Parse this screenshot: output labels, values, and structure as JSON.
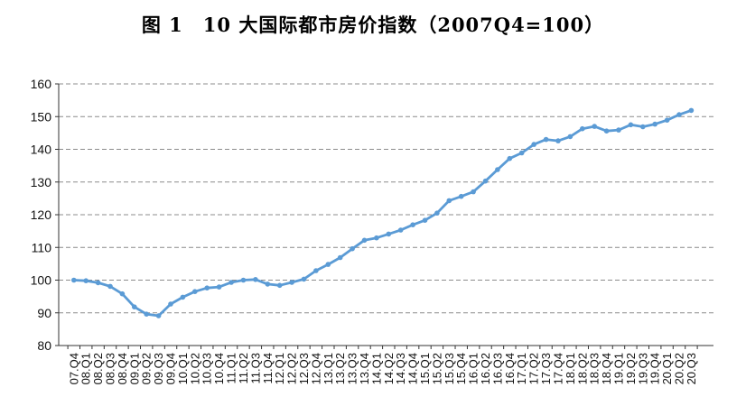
{
  "chart_data": {
    "type": "line",
    "title": "图 1　10 大国际都市房价指数（2007Q4=100）",
    "xlabel": "",
    "ylabel": "",
    "ylim": [
      80,
      160
    ],
    "y_ticks": [
      80,
      90,
      100,
      110,
      120,
      130,
      140,
      150,
      160
    ],
    "grid": "horizontal-dashed",
    "legend": "none",
    "line_color": "#5B9BD5",
    "marker": "circle",
    "categories": [
      "07.Q4",
      "08.Q1",
      "08.Q2",
      "08.Q3",
      "08.Q4",
      "09.Q1",
      "09.Q2",
      "09.Q3",
      "09.Q4",
      "10.Q1",
      "10.Q2",
      "10.Q3",
      "10.Q4",
      "11.Q1",
      "11.Q2",
      "11.Q3",
      "11.Q4",
      "12.Q1",
      "12.Q2",
      "12.Q3",
      "12.Q4",
      "13.Q1",
      "13.Q2",
      "13.Q3",
      "13.Q4",
      "14.Q1",
      "14.Q2",
      "14.Q3",
      "14.Q4",
      "15.Q1",
      "15.Q2",
      "15.Q3",
      "15.Q4",
      "16.Q1",
      "16.Q2",
      "16.Q3",
      "16.Q4",
      "17.Q1",
      "17.Q2",
      "17.Q3",
      "17.Q4",
      "18.Q1",
      "18.Q2",
      "18.Q3",
      "18.Q4",
      "19.Q1",
      "19.Q2",
      "19.Q3",
      "19.Q4",
      "20.Q1",
      "20.Q2",
      "20.Q3"
    ],
    "series": [
      {
        "name": "10大国际都市房价指数",
        "values": [
          100.0,
          99.8,
          99.2,
          98.1,
          95.8,
          91.8,
          89.6,
          89.1,
          92.7,
          94.8,
          96.5,
          97.6,
          97.9,
          99.3,
          100.0,
          100.2,
          98.8,
          98.4,
          99.3,
          100.3,
          102.9,
          104.8,
          106.9,
          109.6,
          112.2,
          112.9,
          114.1,
          115.3,
          116.9,
          118.3,
          120.5,
          124.3,
          125.6,
          127.0,
          130.3,
          133.8,
          137.2,
          138.9,
          141.5,
          143.0,
          142.6,
          143.9,
          146.3,
          147.0,
          145.6,
          145.9,
          147.5,
          146.9,
          147.7,
          148.9,
          150.6,
          151.9
        ]
      }
    ]
  }
}
